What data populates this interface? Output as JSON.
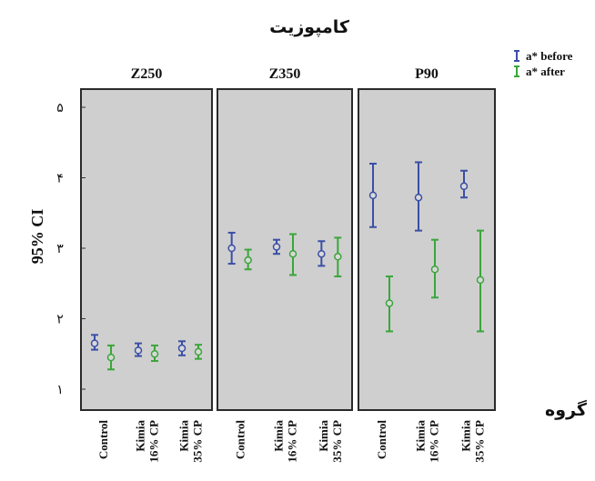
{
  "chart_data": {
    "type": "errorbar",
    "title": "کامپوزیت",
    "ylabel": "95% CI",
    "xlabel": "گروه",
    "ylim": [
      1,
      5
    ],
    "yticks": [
      {
        "value": 1,
        "label": "۱"
      },
      {
        "value": 2,
        "label": "۲"
      },
      {
        "value": 3,
        "label": "۳"
      },
      {
        "value": 4,
        "label": "۴"
      },
      {
        "value": 5,
        "label": "۵"
      }
    ],
    "legend": {
      "placement": "top-right"
    },
    "series": [
      {
        "name": "a* before",
        "color": "#3a4fa6"
      },
      {
        "name": "a* after",
        "color": "#3aa63a"
      }
    ],
    "panels": [
      {
        "label": "Z250",
        "groups": [
          {
            "label": [
              "Control"
            ],
            "before": {
              "mean": 1.65,
              "lo": 1.56,
              "hi": 1.77
            },
            "after": {
              "mean": 1.45,
              "lo": 1.28,
              "hi": 1.62
            }
          },
          {
            "label": [
              "Kimia",
              "16% CP"
            ],
            "before": {
              "mean": 1.55,
              "lo": 1.47,
              "hi": 1.65
            },
            "after": {
              "mean": 1.5,
              "lo": 1.4,
              "hi": 1.62
            }
          },
          {
            "label": [
              "Kimia",
              "35% CP"
            ],
            "before": {
              "mean": 1.58,
              "lo": 1.48,
              "hi": 1.68
            },
            "after": {
              "mean": 1.53,
              "lo": 1.43,
              "hi": 1.63
            }
          }
        ]
      },
      {
        "label": "Z350",
        "groups": [
          {
            "label": [
              "Control"
            ],
            "before": {
              "mean": 3.0,
              "lo": 2.78,
              "hi": 3.22
            },
            "after": {
              "mean": 2.83,
              "lo": 2.7,
              "hi": 2.98
            }
          },
          {
            "label": [
              "Kimia",
              "16% CP"
            ],
            "before": {
              "mean": 3.02,
              "lo": 2.92,
              "hi": 3.12
            },
            "after": {
              "mean": 2.92,
              "lo": 2.62,
              "hi": 3.2
            }
          },
          {
            "label": [
              "Kimia",
              "35% CP"
            ],
            "before": {
              "mean": 2.92,
              "lo": 2.75,
              "hi": 3.1
            },
            "after": {
              "mean": 2.88,
              "lo": 2.6,
              "hi": 3.15
            }
          }
        ]
      },
      {
        "label": "P90",
        "groups": [
          {
            "label": [
              "Control"
            ],
            "before": {
              "mean": 3.75,
              "lo": 3.3,
              "hi": 4.2
            },
            "after": {
              "mean": 2.22,
              "lo": 1.82,
              "hi": 2.6
            }
          },
          {
            "label": [
              "Kimia",
              "16% CP"
            ],
            "before": {
              "mean": 3.72,
              "lo": 3.25,
              "hi": 4.22
            },
            "after": {
              "mean": 2.7,
              "lo": 2.3,
              "hi": 3.12
            }
          },
          {
            "label": [
              "Kimia",
              "35% CP"
            ],
            "before": {
              "mean": 3.88,
              "lo": 3.72,
              "hi": 4.1
            },
            "after": {
              "mean": 2.55,
              "lo": 1.82,
              "hi": 3.25
            }
          }
        ]
      }
    ]
  }
}
